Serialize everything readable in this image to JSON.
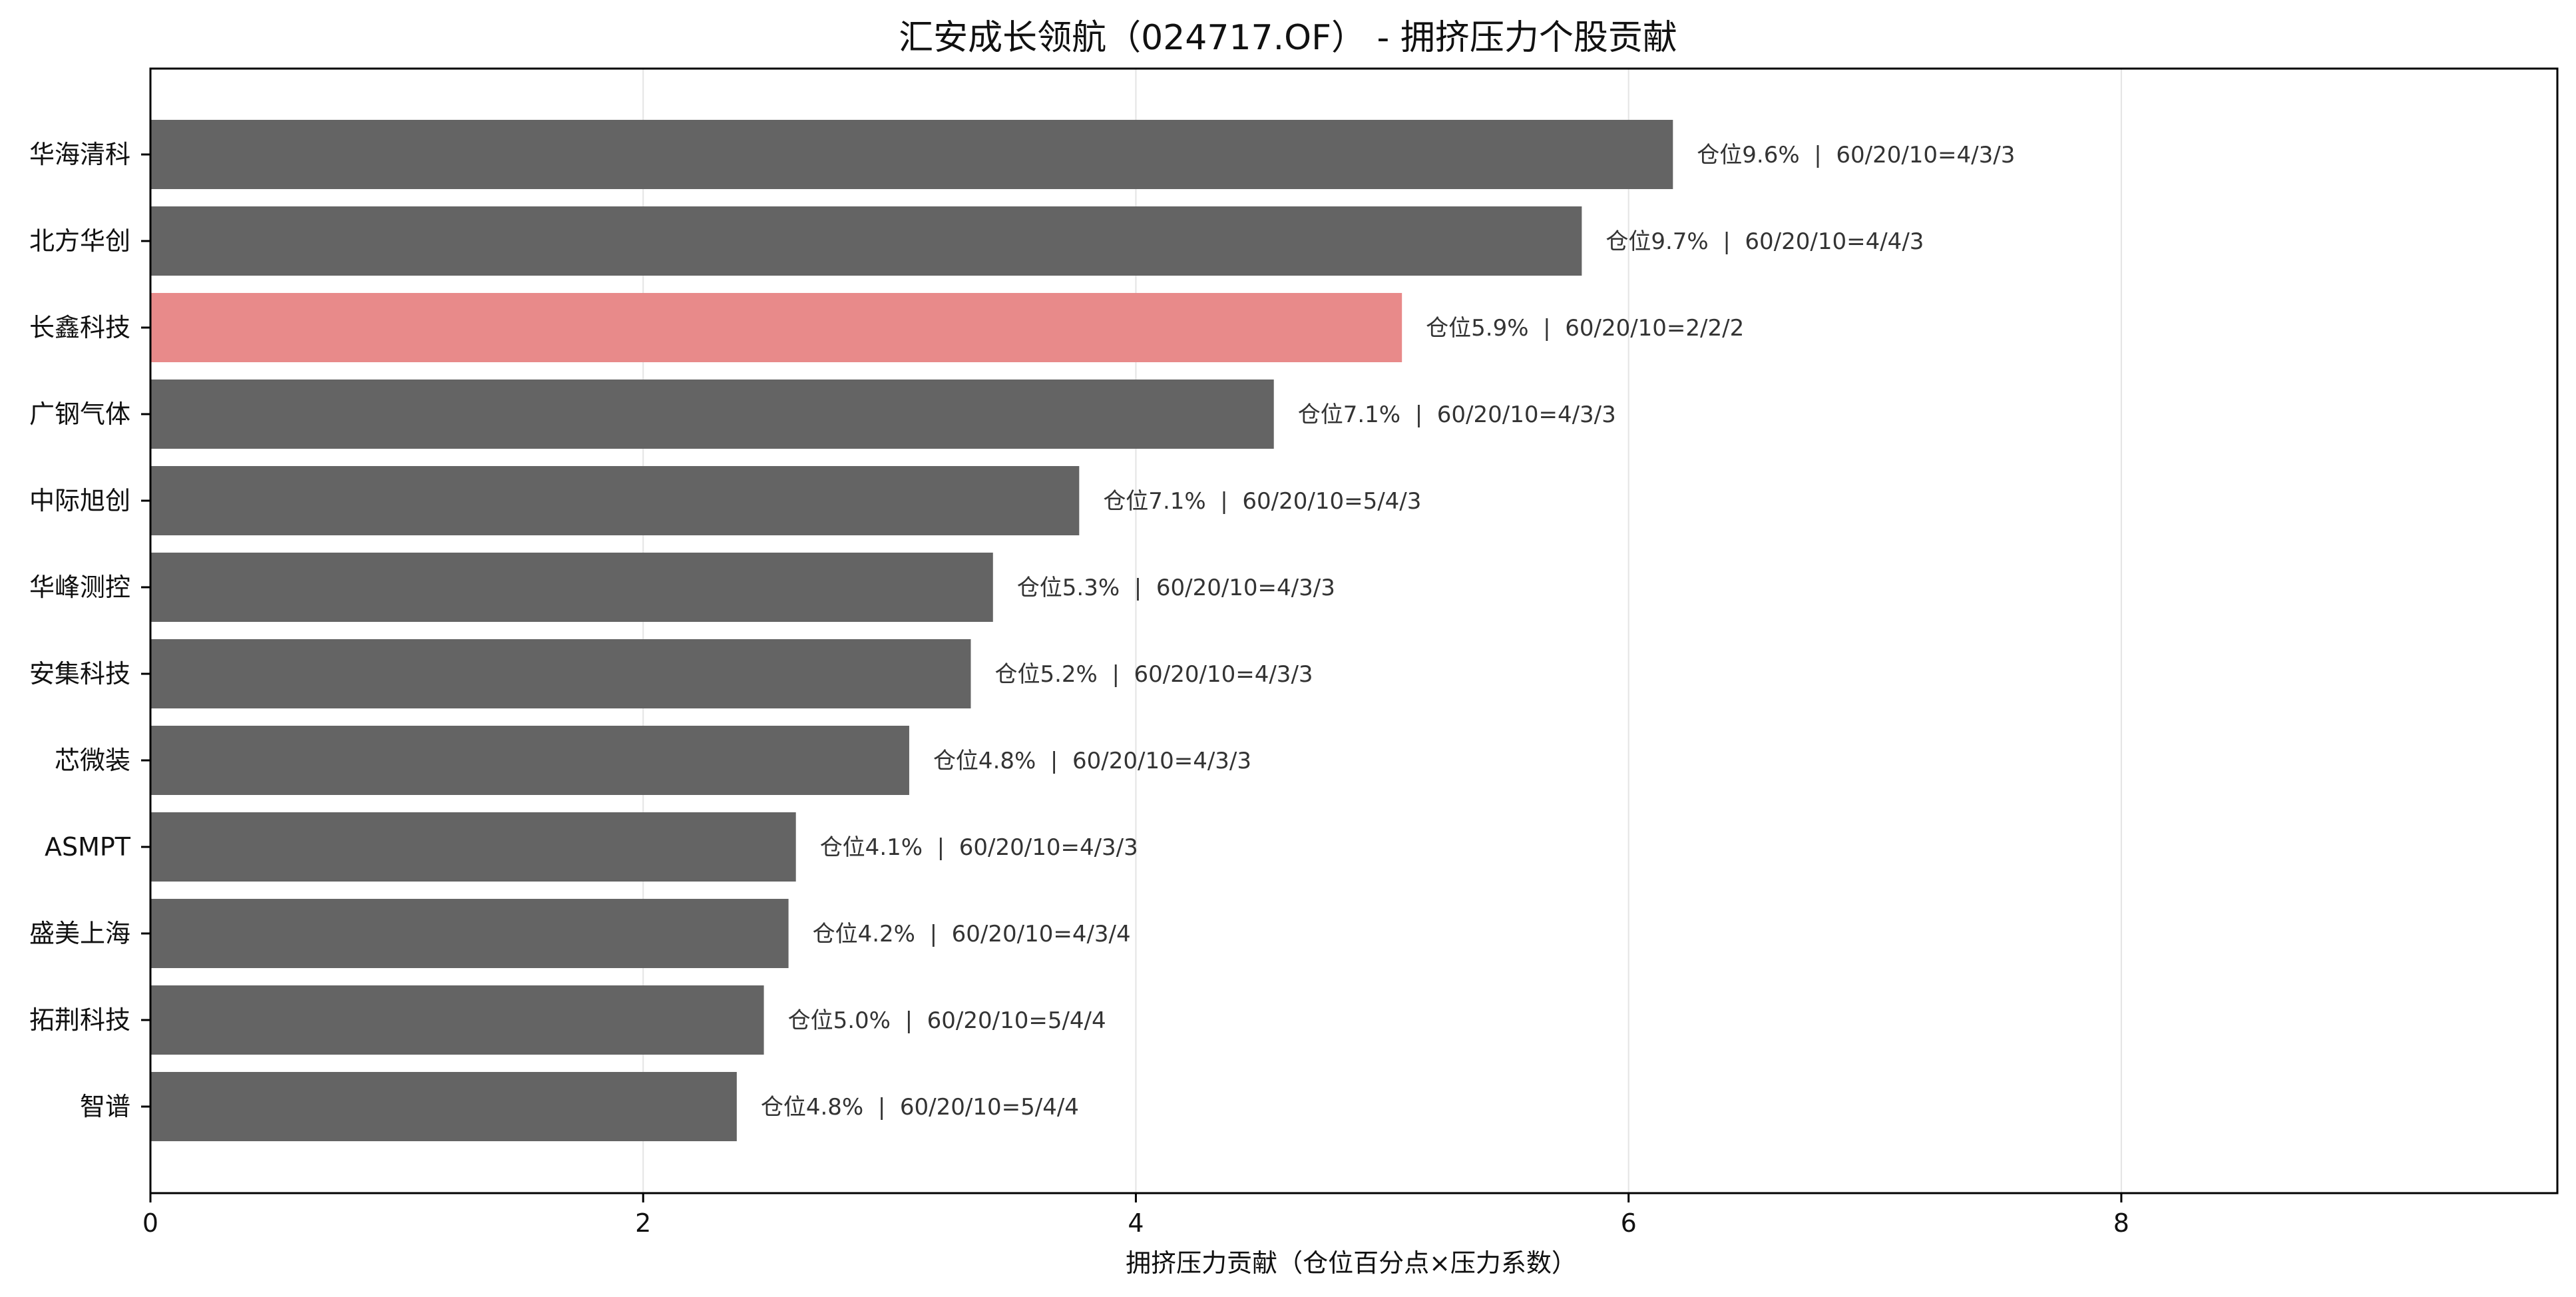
{
  "chart_data": {
    "type": "bar",
    "orientation": "horizontal",
    "title": "汇安成长领航（024717.OF） - 拥挤压力个股贡献",
    "xlabel": "拥挤压力贡献（仓位百分点×压力系数）",
    "ylabel": "",
    "xlim": [
      0,
      9.77
    ],
    "xticks": [
      "0",
      "2",
      "4",
      "6",
      "8"
    ],
    "grid": "vertical",
    "categories": [
      "华海清科",
      "北方华创",
      "长鑫科技",
      "广钢气体",
      "中际旭创",
      "华峰测控",
      "安集科技",
      "芯微装",
      "ASMPT",
      "盛美上海",
      "拓荆科技",
      "智谱"
    ],
    "values": [
      6.18,
      5.81,
      5.08,
      4.56,
      3.77,
      3.42,
      3.33,
      3.08,
      2.62,
      2.59,
      2.49,
      2.38
    ],
    "labels": [
      "仓位9.6%  |  60/20/10=4/3/3",
      "仓位9.7%  |  60/20/10=4/4/3",
      "仓位5.9%  |  60/20/10=2/2/2",
      "仓位7.1%  |  60/20/10=4/3/3",
      "仓位7.1%  |  60/20/10=5/4/3",
      "仓位5.3%  |  60/20/10=4/3/3",
      "仓位5.2%  |  60/20/10=4/3/3",
      "仓位4.8%  |  60/20/10=4/3/3",
      "仓位4.1%  |  60/20/10=4/3/3",
      "仓位4.2%  |  60/20/10=4/3/4",
      "仓位5.0%  |  60/20/10=5/4/4",
      "仓位4.8%  |  60/20/10=5/4/4"
    ],
    "highlighted": [
      "长鑫科技"
    ]
  },
  "colors": {
    "bar": "#646464",
    "highlight": "#e88a8a",
    "grid": "#e4e4e4",
    "axis": "#000000",
    "label_text": "#333333"
  }
}
